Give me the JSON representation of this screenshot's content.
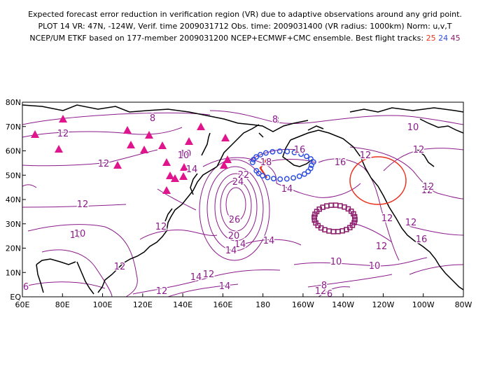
{
  "header": {
    "line1": "Expected forecast error reduction in verification region (VR) due to adaptive observations around any grid point.",
    "line2": "PLOT 14 VR: 47N, -124W, Verif. time 2009031712 Obs. time: 2009031400 (VR radius: 1000km) Norm: u,v,T",
    "line3_prefix": "NCEP/UM ETKF based on 177-member 2009031200 NCEP+ECMWF+CMC ensemble. Best flight tracks:",
    "track1": "25",
    "track2": "24",
    "track3": "45"
  },
  "colors": {
    "contour": "#8b1a8b",
    "coast": "#000000",
    "track1": "#e8321e",
    "track2": "#2f4fe0",
    "track3": "#8b1a6b",
    "triangles": "#e0148c",
    "vr_circle": "#e8321e"
  },
  "map": {
    "lat_labels": [
      "EQ",
      "10N",
      "20N",
      "30N",
      "40N",
      "50N",
      "60N",
      "70N",
      "80N"
    ],
    "lon_labels": [
      "60E",
      "80E",
      "100E",
      "120E",
      "140E",
      "160E",
      "180",
      "160W",
      "140W",
      "120W",
      "100W",
      "80W"
    ],
    "contour_labels": [
      "8",
      "12",
      "12",
      "12",
      "10",
      "10",
      "8",
      "12",
      "12",
      "12",
      "16",
      "18",
      "22",
      "24",
      "26",
      "14",
      "20",
      "14",
      "14",
      "14",
      "10",
      "12",
      "16",
      "12",
      "12",
      "10",
      "12",
      "14",
      "12",
      "10",
      "8",
      "12",
      "10",
      "6",
      "12",
      "14",
      "12",
      "8",
      "6",
      "10",
      "16",
      "14",
      "12"
    ]
  }
}
